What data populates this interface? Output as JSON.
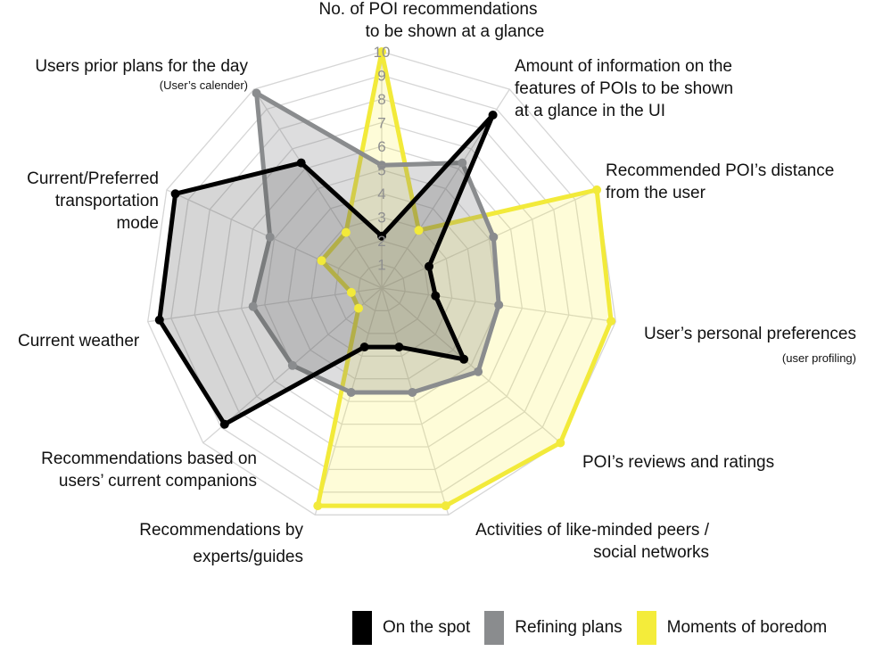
{
  "chart_data": {
    "type": "radar",
    "r_range": [
      0,
      10
    ],
    "tick_labels": [
      "1",
      "2",
      "3",
      "4",
      "5",
      "6",
      "7",
      "8",
      "9",
      "10"
    ],
    "grid": true,
    "legend_position": "bottom-right",
    "axes": [
      {
        "key": "poi_count",
        "label": [
          "No. of POI recommendations",
          "to be shown at a glance"
        ],
        "sub": ""
      },
      {
        "key": "info_amount",
        "label": [
          "Amount of information on the",
          "features of POIs to be shown",
          "at a glance in the UI"
        ],
        "sub": ""
      },
      {
        "key": "distance",
        "label": [
          "Recommended POI’s distance",
          "from the user"
        ],
        "sub": ""
      },
      {
        "key": "preferences",
        "label": [
          "User’s personal preferences"
        ],
        "sub": "(user profiling)"
      },
      {
        "key": "reviews",
        "label": [
          "POI’s reviews and ratings"
        ],
        "sub": ""
      },
      {
        "key": "peers",
        "label": [
          "Activities of like-minded peers /",
          "social networks"
        ],
        "sub": ""
      },
      {
        "key": "experts",
        "label": [
          "Recommendations by",
          "experts/guides"
        ],
        "sub": ""
      },
      {
        "key": "companions",
        "label": [
          "Recommendations based on",
          "users’ current companions"
        ],
        "sub": ""
      },
      {
        "key": "weather",
        "label": [
          "Current weather"
        ],
        "sub": ""
      },
      {
        "key": "transport",
        "label": [
          "Current/Preferred",
          "transportation",
          "mode"
        ],
        "sub": ""
      },
      {
        "key": "prior_plans",
        "label": [
          "Users prior plans for the day"
        ],
        "sub": "(User’s calender)"
      }
    ],
    "series": [
      {
        "name": "On the spot",
        "color": "#000000",
        "fill": "rgba(70,70,70,0.22)",
        "values": [
          2.2,
          8.7,
          2.2,
          2.3,
          4.6,
          2.6,
          2.6,
          8.8,
          9.5,
          9.6,
          6.3
        ]
      },
      {
        "name": "Refining plans",
        "color": "#8a8c8e",
        "fill": "rgba(120,120,125,0.25)",
        "values": [
          5.2,
          6.3,
          5.2,
          5.0,
          5.4,
          4.6,
          4.6,
          5.0,
          5.5,
          5.2,
          9.8
        ]
      },
      {
        "name": "Moments of boredom",
        "color": "#f2ea3a",
        "fill": "rgba(250,240,60,0.20)",
        "values": [
          10.0,
          2.9,
          10.0,
          9.8,
          10.0,
          9.6,
          9.6,
          1.3,
          1.3,
          2.8,
          2.8
        ]
      }
    ]
  }
}
